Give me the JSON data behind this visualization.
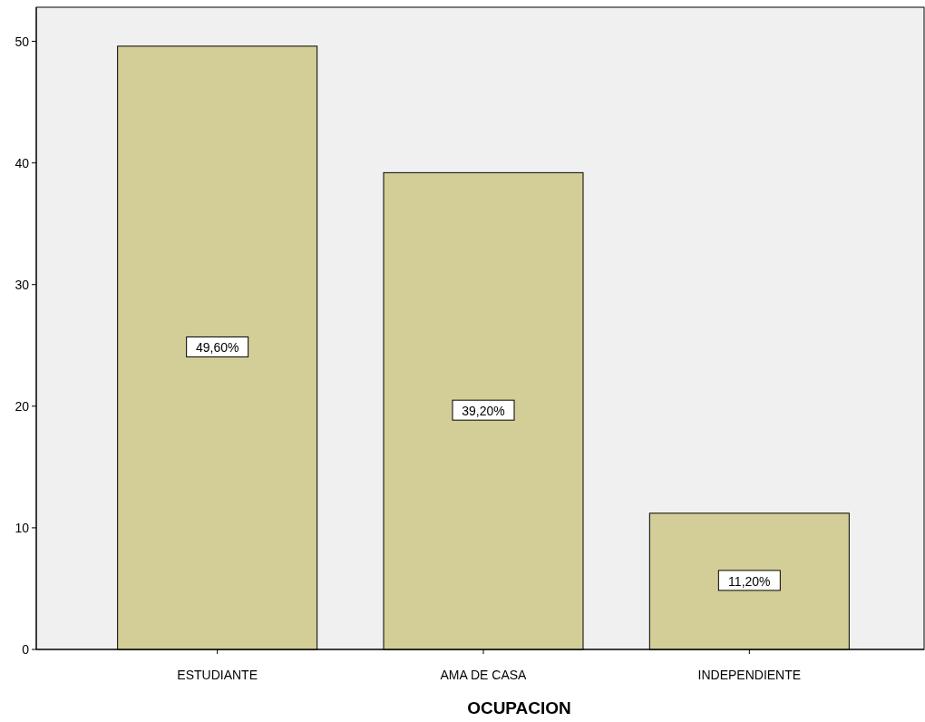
{
  "chart_data": {
    "type": "bar",
    "xlabel": "OCUPACION",
    "categories": [
      "ESTUDIANTE",
      "AMA DE CASA",
      "INDEPENDIENTE"
    ],
    "values": [
      49.6,
      39.2,
      11.2
    ],
    "value_labels": [
      "49,60%",
      "39,20%",
      "11,20%"
    ],
    "color": "#d3ce97",
    "ylim": [
      0,
      52.8
    ],
    "yticks": [
      0,
      10,
      20,
      30,
      40,
      50
    ],
    "grid": false
  }
}
